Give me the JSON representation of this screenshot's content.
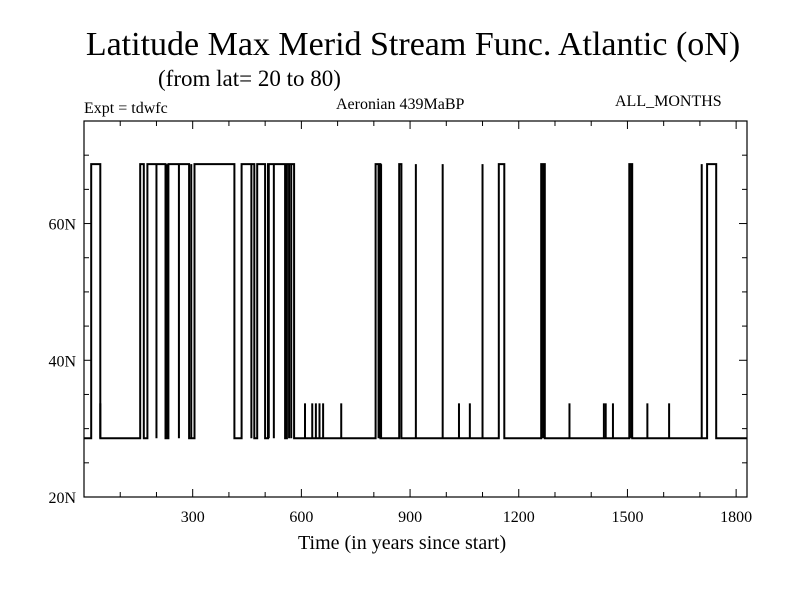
{
  "chart_data": {
    "type": "line",
    "title": "Latitude Max Merid Stream Func. Atlantic (oN)",
    "subtitle": "(from lat= 20 to 80)",
    "annotations": {
      "left": "Expt = tdwfc",
      "center": "Aeronian 439MaBP",
      "right": "ALL_MONTHS"
    },
    "xlabel": "Time (in years since start)",
    "ylabel": "",
    "xlim": [
      0,
      1830
    ],
    "ylim": [
      20,
      75
    ],
    "xticks": [
      300,
      600,
      900,
      1200,
      1500,
      1800
    ],
    "xtick_labels": [
      "300",
      "600",
      "900",
      "1200",
      "1500",
      "1800"
    ],
    "yticks": [
      40,
      60
    ],
    "ytick_labels": [
      "40N",
      "60N"
    ],
    "ylim_label": "20N",
    "grid": false,
    "series": [
      {
        "name": "",
        "color": "#000000",
        "low": 28.6,
        "high": 68.7,
        "mid": 33.7,
        "segments": [
          {
            "x0": 0,
            "x1": 20,
            "state": "low"
          },
          {
            "x0": 20,
            "x1": 45,
            "state": "high"
          },
          {
            "x0": 45,
            "x1": 155,
            "state": "low"
          },
          {
            "x0": 155,
            "x1": 165,
            "state": "high"
          },
          {
            "x0": 165,
            "x1": 175,
            "state": "low"
          },
          {
            "x0": 175,
            "x1": 225,
            "state": "high"
          },
          {
            "x0": 225,
            "x1": 233,
            "state": "low"
          },
          {
            "x0": 233,
            "x1": 290,
            "state": "high"
          },
          {
            "x0": 290,
            "x1": 305,
            "state": "low"
          },
          {
            "x0": 305,
            "x1": 415,
            "state": "high"
          },
          {
            "x0": 415,
            "x1": 435,
            "state": "low"
          },
          {
            "x0": 435,
            "x1": 470,
            "state": "high"
          },
          {
            "x0": 470,
            "x1": 478,
            "state": "low"
          },
          {
            "x0": 478,
            "x1": 500,
            "state": "high"
          },
          {
            "x0": 500,
            "x1": 508,
            "state": "low"
          },
          {
            "x0": 508,
            "x1": 555,
            "state": "high"
          },
          {
            "x0": 555,
            "x1": 560,
            "state": "low"
          },
          {
            "x0": 560,
            "x1": 580,
            "state": "high"
          },
          {
            "x0": 580,
            "x1": 805,
            "state": "low"
          },
          {
            "x0": 805,
            "x1": 818,
            "state": "high"
          },
          {
            "x0": 818,
            "x1": 870,
            "state": "low"
          },
          {
            "x0": 870,
            "x1": 876,
            "state": "high"
          },
          {
            "x0": 876,
            "x1": 1145,
            "state": "low"
          },
          {
            "x0": 1145,
            "x1": 1160,
            "state": "high"
          },
          {
            "x0": 1160,
            "x1": 1262,
            "state": "low"
          },
          {
            "x0": 1262,
            "x1": 1272,
            "state": "high"
          },
          {
            "x0": 1272,
            "x1": 1505,
            "state": "low"
          },
          {
            "x0": 1505,
            "x1": 1513,
            "state": "high"
          },
          {
            "x0": 1513,
            "x1": 1720,
            "state": "low"
          },
          {
            "x0": 1720,
            "x1": 1745,
            "state": "high"
          },
          {
            "x0": 1745,
            "x1": 1830,
            "state": "low"
          }
        ],
        "spikes": [
          {
            "x": 45,
            "state": "mid"
          },
          {
            "x": 200,
            "state": "high"
          },
          {
            "x": 228,
            "state": "high"
          },
          {
            "x": 262,
            "state": "high"
          },
          {
            "x": 296,
            "state": "high"
          },
          {
            "x": 462,
            "state": "high"
          },
          {
            "x": 510,
            "state": "high"
          },
          {
            "x": 524,
            "state": "high"
          },
          {
            "x": 566,
            "state": "high"
          },
          {
            "x": 572,
            "state": "high"
          },
          {
            "x": 610,
            "state": "mid"
          },
          {
            "x": 630,
            "state": "mid"
          },
          {
            "x": 640,
            "state": "mid"
          },
          {
            "x": 650,
            "state": "mid"
          },
          {
            "x": 660,
            "state": "mid"
          },
          {
            "x": 710,
            "state": "mid"
          },
          {
            "x": 813,
            "state": "high"
          },
          {
            "x": 820,
            "state": "high"
          },
          {
            "x": 916,
            "state": "high"
          },
          {
            "x": 990,
            "state": "high"
          },
          {
            "x": 1035,
            "state": "mid"
          },
          {
            "x": 1065,
            "state": "mid"
          },
          {
            "x": 1100,
            "state": "high"
          },
          {
            "x": 1267,
            "state": "high"
          },
          {
            "x": 1340,
            "state": "mid"
          },
          {
            "x": 1435,
            "state": "mid"
          },
          {
            "x": 1440,
            "state": "mid"
          },
          {
            "x": 1460,
            "state": "mid"
          },
          {
            "x": 1510,
            "state": "high"
          },
          {
            "x": 1555,
            "state": "mid"
          },
          {
            "x": 1615,
            "state": "mid"
          },
          {
            "x": 1705,
            "state": "high"
          }
        ]
      }
    ]
  }
}
